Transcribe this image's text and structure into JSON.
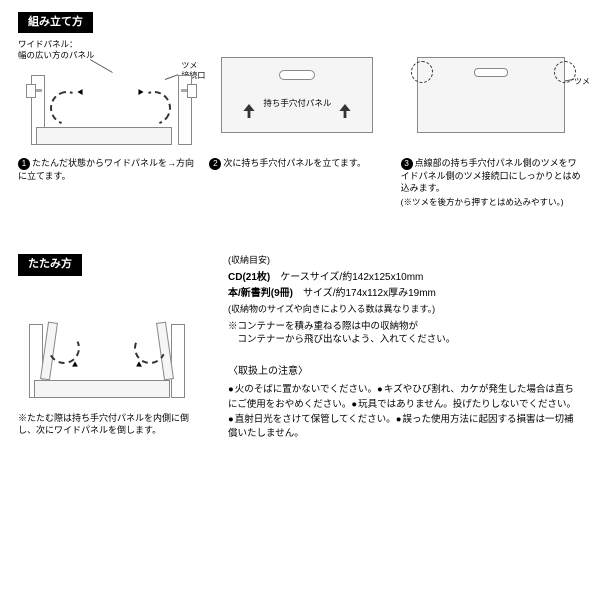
{
  "assembly": {
    "label": "組み立て方",
    "step1": {
      "callout": "ワイドパネル：\n幅の広い方のパネル",
      "clip_label": "ツメ\n接続口",
      "caption": "たたんだ状態からワイドパネルを→方向に立てます。"
    },
    "step2": {
      "panel_label": "持ち手穴付パネル",
      "caption": "次に持ち手穴付パネルを立てます。"
    },
    "step3": {
      "clip_label": "ツメ",
      "caption": "点線部の持ち手穴付パネル側のツメをワイドパネル側のツメ接続口にしっかりとはめ込みます。",
      "note": "(※ツメを後方から押すとはめ込みやすい。)"
    }
  },
  "fold": {
    "label": "たたみ方",
    "caption": "※たたむ際は持ち手穴付パネルを内側に倒し、次にワイドパネルを倒します。"
  },
  "spec": {
    "guide": "(収納目安)",
    "cd_label": "CD(21枚)",
    "cd_size": "ケースサイズ/約142x125x10mm",
    "book_label": "本/新書判(9冊)",
    "book_size": "サイズ/約174x112x厚み19mm",
    "note1": "(収納物のサイズや向きにより入る数は異なります。)",
    "stack": "※コンテナーを積み重ねる際は中の収納物が\n　コンテナーから飛び出ないよう、入れてください。"
  },
  "handling": {
    "header": "〈取扱上の注意〉",
    "items": [
      "火のそばに置かないでください。",
      "キズやひび割れ、カケが発生した場合は直ちにご使用をおやめください。",
      "玩具ではありません。投げたりしないでください。",
      "直射日光をさけて保管してください。",
      "誤った使用方法に起因する損害は一切補償いたしません。"
    ]
  }
}
